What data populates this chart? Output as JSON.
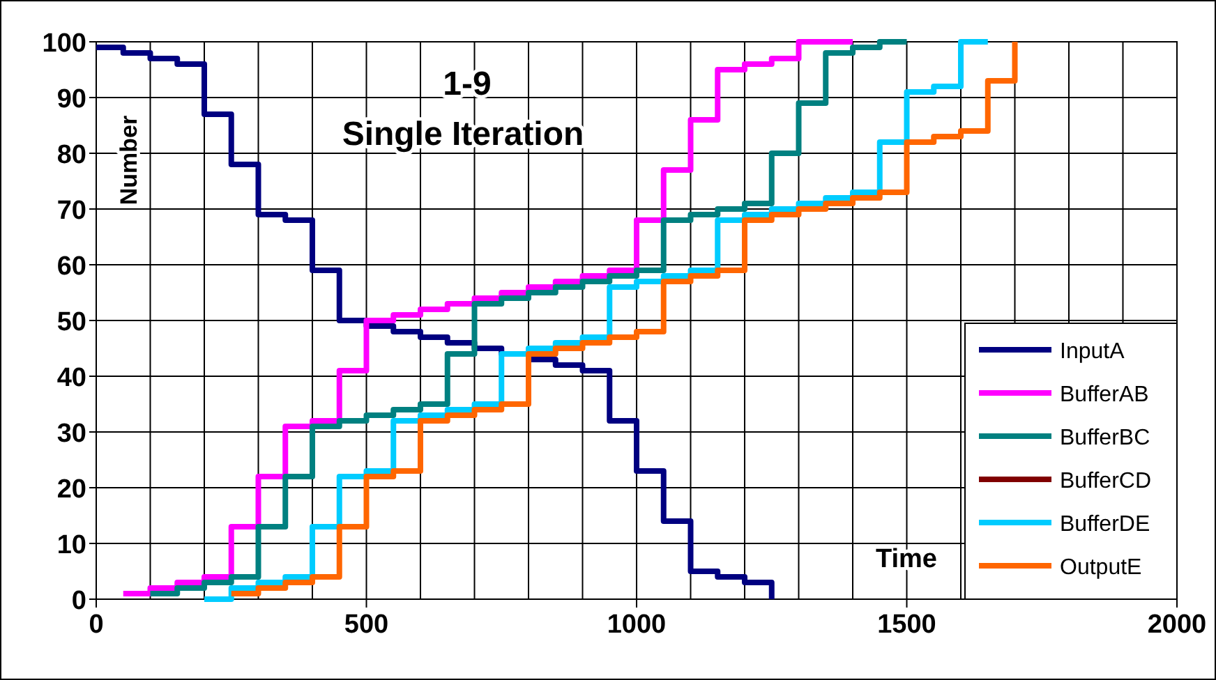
{
  "chart_data": {
    "type": "step",
    "title": "1-9",
    "subtitle": "Single Iteration",
    "xlabel": "Time",
    "ylabel": "Number",
    "xlim": [
      0,
      2000
    ],
    "ylim": [
      0,
      100
    ],
    "xticks": [
      0,
      {
        "value": 100,
        "label": null
      },
      {
        "value": 200,
        "label": null
      },
      {
        "value": 300,
        "label": null
      },
      {
        "value": 400,
        "label": null
      },
      500,
      {
        "value": 600,
        "label": null
      },
      {
        "value": 700,
        "label": null
      },
      {
        "value": 800,
        "label": null
      },
      {
        "value": 900,
        "label": null
      },
      1000,
      {
        "value": 1100,
        "label": null
      },
      {
        "value": 1200,
        "label": null
      },
      {
        "value": 1300,
        "label": null
      },
      {
        "value": 1400,
        "label": null
      },
      1500,
      {
        "value": 1600,
        "label": null
      },
      {
        "value": 1700,
        "label": null
      },
      {
        "value": 1800,
        "label": null
      },
      {
        "value": 1900,
        "label": null
      },
      2000
    ],
    "yticks": [
      0,
      10,
      20,
      30,
      40,
      50,
      60,
      70,
      80,
      90,
      100
    ],
    "grid": true,
    "legend": "bottom right",
    "series": [
      {
        "name": "InputA",
        "color": "#000080",
        "x": [
          0,
          50,
          100,
          150,
          200,
          250,
          300,
          350,
          400,
          450,
          500,
          550,
          600,
          650,
          700,
          750,
          800,
          850,
          900,
          950,
          1000,
          1050,
          1100,
          1150,
          1200,
          1250
        ],
        "values": [
          99,
          98,
          97,
          96,
          87,
          78,
          69,
          68,
          59,
          50,
          49,
          48,
          47,
          46,
          45,
          44,
          43,
          42,
          41,
          32,
          23,
          14,
          5,
          4,
          3,
          0
        ]
      },
      {
        "name": "BufferAB",
        "color": "#ff00ff",
        "x": [
          50,
          100,
          150,
          200,
          250,
          300,
          350,
          400,
          450,
          500,
          550,
          600,
          650,
          700,
          750,
          800,
          850,
          900,
          950,
          1000,
          1050,
          1100,
          1150,
          1200,
          1250,
          1300,
          1400
        ],
        "values": [
          1,
          2,
          3,
          4,
          13,
          22,
          31,
          32,
          41,
          50,
          51,
          52,
          53,
          54,
          55,
          56,
          57,
          58,
          59,
          68,
          77,
          86,
          95,
          96,
          97,
          100,
          100
        ]
      },
      {
        "name": "BufferBC",
        "color": "#008080",
        "x": [
          100,
          150,
          200,
          250,
          300,
          350,
          400,
          450,
          500,
          550,
          600,
          650,
          700,
          750,
          800,
          850,
          900,
          950,
          1000,
          1050,
          1100,
          1150,
          1200,
          1250,
          1300,
          1350,
          1400,
          1450,
          1500
        ],
        "values": [
          1,
          2,
          3,
          4,
          13,
          22,
          31,
          32,
          33,
          34,
          35,
          44,
          53,
          54,
          55,
          56,
          57,
          58,
          59,
          68,
          69,
          70,
          71,
          80,
          89,
          98,
          99,
          100,
          100
        ]
      },
      {
        "name": "BufferCD",
        "color": "#800000"
      },
      {
        "name": "BufferDE",
        "color": "#00ccff",
        "x": [
          200,
          250,
          300,
          350,
          400,
          450,
          500,
          550,
          600,
          650,
          700,
          750,
          800,
          850,
          900,
          950,
          1000,
          1050,
          1100,
          1150,
          1200,
          1250,
          1300,
          1350,
          1400,
          1450,
          1500,
          1550,
          1600,
          1650
        ],
        "values": [
          0,
          2,
          3,
          4,
          13,
          22,
          23,
          32,
          33,
          34,
          35,
          44,
          45,
          46,
          47,
          56,
          57,
          58,
          59,
          68,
          69,
          70,
          71,
          72,
          73,
          82,
          91,
          92,
          100,
          100
        ]
      },
      {
        "name": "OutputE",
        "color": "#ff6600",
        "x": [
          250,
          300,
          350,
          400,
          450,
          500,
          550,
          600,
          650,
          700,
          750,
          800,
          850,
          900,
          950,
          1000,
          1050,
          1100,
          1150,
          1200,
          1250,
          1300,
          1350,
          1400,
          1450,
          1500,
          1550,
          1600,
          1650,
          1700
        ],
        "values": [
          1,
          2,
          3,
          4,
          13,
          22,
          23,
          32,
          33,
          34,
          35,
          44,
          45,
          46,
          47,
          48,
          57,
          58,
          59,
          68,
          69,
          70,
          71,
          72,
          73,
          82,
          83,
          84,
          93,
          100
        ]
      }
    ]
  }
}
